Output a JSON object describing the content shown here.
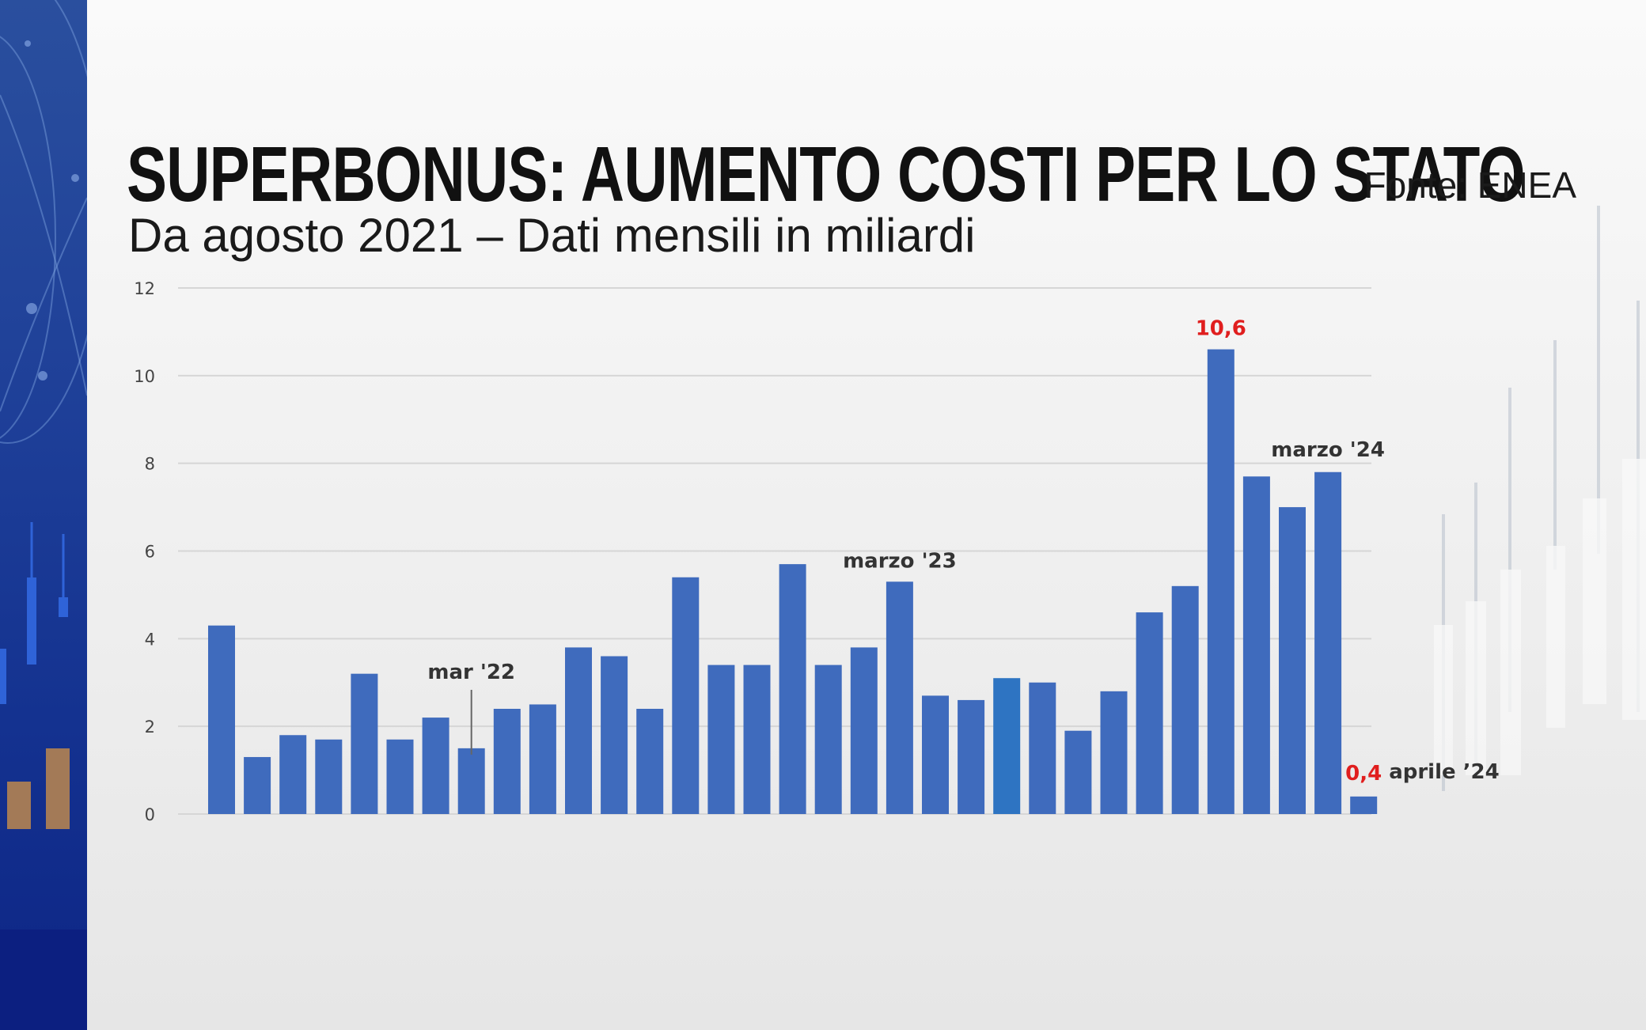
{
  "header": {
    "title": "SUPERBONUS: AUMENTO COSTI PER LO STATO",
    "subtitle": "Da agosto 2021 – Dati mensili in miliardi",
    "source": "Fonte: ENEA"
  },
  "colors": {
    "bar": "#3f6bbd",
    "bar_highlight": "#2e74c2",
    "accent_red": "#e01e1e",
    "left_band": "#1e3f98"
  },
  "chart_data": {
    "type": "bar",
    "title": "SUPERBONUS: AUMENTO COSTI PER LO STATO",
    "subtitle": "Da agosto 2021 – Dati mensili in miliardi",
    "values": [
      4.3,
      1.3,
      1.8,
      1.7,
      3.2,
      1.7,
      2.2,
      1.5,
      2.4,
      2.5,
      3.8,
      3.6,
      2.4,
      5.4,
      3.4,
      3.4,
      5.7,
      3.4,
      3.8,
      5.3,
      2.7,
      2.6,
      3.1,
      3.0,
      1.9,
      2.8,
      4.6,
      5.2,
      10.6,
      7.7,
      7.0,
      7.8,
      0.4
    ],
    "highlight_index": 22,
    "ylim": [
      0,
      12
    ],
    "yticks": [
      "0",
      "2",
      "4",
      "6",
      "8",
      "10",
      "12"
    ],
    "grid": true,
    "annotations": [
      {
        "index": 7,
        "text": "mar '22"
      },
      {
        "index": 19,
        "text": "marzo '23"
      },
      {
        "index": 28,
        "text": "10,6",
        "color": "red"
      },
      {
        "index": 31,
        "text": "marzo '24"
      },
      {
        "index": 32,
        "text": "0,4",
        "color": "red"
      },
      {
        "index": 32,
        "text": "aprile ’24"
      }
    ]
  }
}
